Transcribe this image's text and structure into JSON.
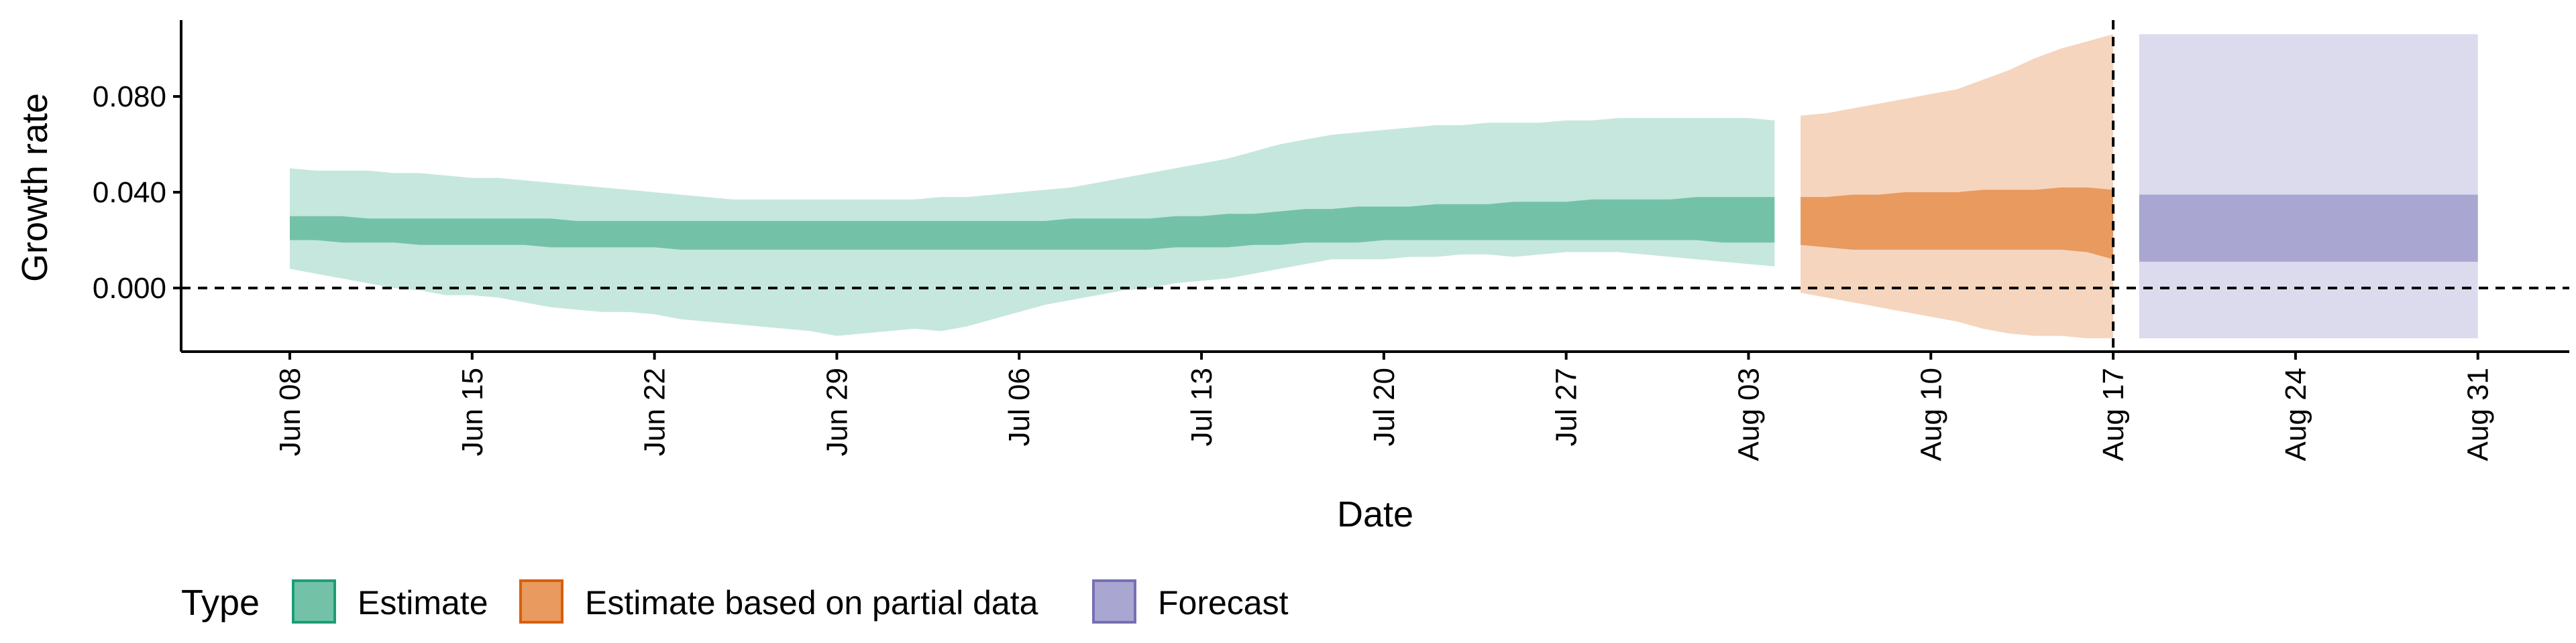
{
  "chart_data": {
    "type": "area",
    "xlabel": "Date",
    "ylabel": "Growth rate",
    "ylim": [
      -0.027,
      0.112
    ],
    "y_ticks": [
      {
        "value": 0.0,
        "label": "0.000"
      },
      {
        "value": 0.04,
        "label": "0.040"
      },
      {
        "value": 0.08,
        "label": "0.080"
      }
    ],
    "x_ticks": [
      {
        "day": 0,
        "label": "Jun 08"
      },
      {
        "day": 7,
        "label": "Jun 15"
      },
      {
        "day": 14,
        "label": "Jun 22"
      },
      {
        "day": 21,
        "label": "Jun 29"
      },
      {
        "day": 28,
        "label": "Jul 06"
      },
      {
        "day": 35,
        "label": "Jul 13"
      },
      {
        "day": 42,
        "label": "Jul 20"
      },
      {
        "day": 49,
        "label": "Jul 27"
      },
      {
        "day": 56,
        "label": "Aug 03"
      },
      {
        "day": 63,
        "label": "Aug 10"
      },
      {
        "day": 70,
        "label": "Aug 17"
      },
      {
        "day": 77,
        "label": "Aug 24"
      },
      {
        "day": 84,
        "label": "Aug 31"
      }
    ],
    "x_day_origin": "Jun 08",
    "reference_lines": [
      {
        "orientation": "horizontal",
        "value": 0.0,
        "style": "dashed"
      },
      {
        "orientation": "vertical",
        "day": 70,
        "style": "dashed"
      }
    ],
    "legend": {
      "title": "Type",
      "position": "bottom",
      "items": [
        {
          "label": "Estimate",
          "color": "#73C2A8",
          "border": "#1B9E77"
        },
        {
          "label": "Estimate based on partial data",
          "color": "#E89A5F",
          "border": "#D95F02"
        },
        {
          "label": "Forecast",
          "color": "#A9A6D1",
          "border": "#7570B3"
        }
      ]
    },
    "series": [
      {
        "name": "Estimate",
        "outer_color": "#C6E7DD",
        "inner_color": "#73C2A8",
        "days": [
          0,
          1,
          2,
          3,
          4,
          5,
          6,
          7,
          8,
          9,
          10,
          11,
          12,
          13,
          14,
          15,
          16,
          17,
          18,
          19,
          20,
          21,
          22,
          23,
          24,
          25,
          26,
          27,
          28,
          29,
          30,
          31,
          32,
          33,
          34,
          35,
          36,
          37,
          38,
          39,
          40,
          41,
          42,
          43,
          44,
          45,
          46,
          47,
          48,
          49,
          50,
          51,
          52,
          53,
          54,
          55,
          56,
          57
        ],
        "outer_low": [
          0.008,
          0.006,
          0.004,
          0.002,
          0.0,
          -0.001,
          -0.003,
          -0.003,
          -0.004,
          -0.006,
          -0.008,
          -0.009,
          -0.01,
          -0.01,
          -0.011,
          -0.013,
          -0.014,
          -0.015,
          -0.016,
          -0.017,
          -0.018,
          -0.02,
          -0.019,
          -0.018,
          -0.017,
          -0.018,
          -0.016,
          -0.013,
          -0.01,
          -0.007,
          -0.005,
          -0.003,
          -0.001,
          0.0,
          0.002,
          0.003,
          0.004,
          0.006,
          0.008,
          0.01,
          0.012,
          0.012,
          0.012,
          0.013,
          0.013,
          0.014,
          0.014,
          0.013,
          0.014,
          0.015,
          0.015,
          0.015,
          0.014,
          0.013,
          0.012,
          0.011,
          0.01,
          0.009
        ],
        "inner_low": [
          0.02,
          0.02,
          0.019,
          0.019,
          0.019,
          0.018,
          0.018,
          0.018,
          0.018,
          0.018,
          0.017,
          0.017,
          0.017,
          0.017,
          0.017,
          0.016,
          0.016,
          0.016,
          0.016,
          0.016,
          0.016,
          0.016,
          0.016,
          0.016,
          0.016,
          0.016,
          0.016,
          0.016,
          0.016,
          0.016,
          0.016,
          0.016,
          0.016,
          0.016,
          0.017,
          0.017,
          0.017,
          0.018,
          0.018,
          0.019,
          0.019,
          0.019,
          0.02,
          0.02,
          0.02,
          0.02,
          0.02,
          0.02,
          0.02,
          0.02,
          0.02,
          0.02,
          0.02,
          0.02,
          0.02,
          0.019,
          0.019,
          0.019
        ],
        "inner_high": [
          0.03,
          0.03,
          0.03,
          0.029,
          0.029,
          0.029,
          0.029,
          0.029,
          0.029,
          0.029,
          0.029,
          0.028,
          0.028,
          0.028,
          0.028,
          0.028,
          0.028,
          0.028,
          0.028,
          0.028,
          0.028,
          0.028,
          0.028,
          0.028,
          0.028,
          0.028,
          0.028,
          0.028,
          0.028,
          0.028,
          0.029,
          0.029,
          0.029,
          0.029,
          0.03,
          0.03,
          0.031,
          0.031,
          0.032,
          0.033,
          0.033,
          0.034,
          0.034,
          0.034,
          0.035,
          0.035,
          0.035,
          0.036,
          0.036,
          0.036,
          0.037,
          0.037,
          0.037,
          0.037,
          0.038,
          0.038,
          0.038,
          0.038
        ],
        "outer_high": [
          0.05,
          0.049,
          0.049,
          0.049,
          0.048,
          0.048,
          0.047,
          0.046,
          0.046,
          0.045,
          0.044,
          0.043,
          0.042,
          0.041,
          0.04,
          0.039,
          0.038,
          0.037,
          0.037,
          0.037,
          0.037,
          0.037,
          0.037,
          0.037,
          0.037,
          0.038,
          0.038,
          0.039,
          0.04,
          0.041,
          0.042,
          0.044,
          0.046,
          0.048,
          0.05,
          0.052,
          0.054,
          0.057,
          0.06,
          0.062,
          0.064,
          0.065,
          0.066,
          0.067,
          0.068,
          0.068,
          0.069,
          0.069,
          0.069,
          0.07,
          0.07,
          0.071,
          0.071,
          0.071,
          0.071,
          0.071,
          0.071,
          0.07
        ]
      },
      {
        "name": "Estimate based on partial data",
        "outer_color": "#F5D5BE",
        "inner_color": "#E89A5F",
        "days": [
          58,
          59,
          60,
          61,
          62,
          63,
          64,
          65,
          66,
          67,
          68,
          69,
          70
        ],
        "outer_low": [
          -0.002,
          -0.004,
          -0.006,
          -0.008,
          -0.01,
          -0.012,
          -0.014,
          -0.017,
          -0.019,
          -0.02,
          -0.02,
          -0.021,
          -0.021
        ],
        "inner_low": [
          0.018,
          0.017,
          0.016,
          0.016,
          0.016,
          0.016,
          0.016,
          0.016,
          0.016,
          0.016,
          0.016,
          0.015,
          0.012
        ],
        "inner_high": [
          0.038,
          0.038,
          0.039,
          0.039,
          0.04,
          0.04,
          0.04,
          0.041,
          0.041,
          0.041,
          0.042,
          0.042,
          0.041
        ],
        "outer_high": [
          0.072,
          0.073,
          0.075,
          0.077,
          0.079,
          0.081,
          0.083,
          0.087,
          0.091,
          0.096,
          0.1,
          0.103,
          0.106
        ]
      },
      {
        "name": "Forecast",
        "outer_color": "#DCDBEE",
        "inner_color": "#A9A6D1",
        "days": [
          71,
          84
        ],
        "outer_low": [
          -0.021,
          -0.021
        ],
        "inner_low": [
          0.011,
          0.011
        ],
        "inner_high": [
          0.039,
          0.039
        ],
        "outer_high": [
          0.106,
          0.106
        ]
      }
    ]
  }
}
